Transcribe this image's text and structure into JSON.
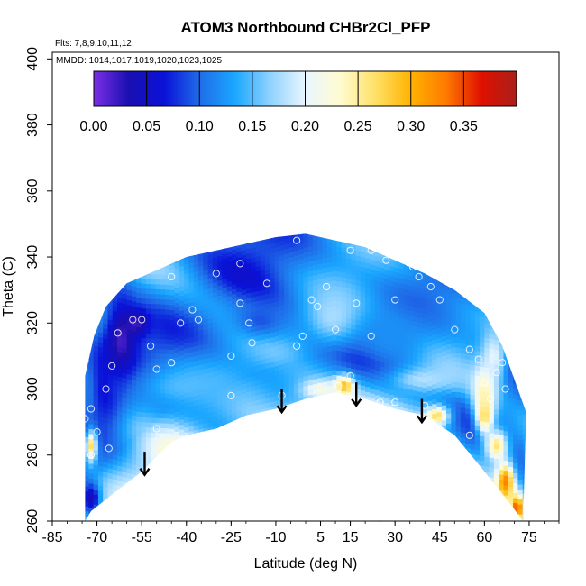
{
  "chart_data": {
    "type": "heatmap",
    "title": "ATOM3 Northbound CHBr2Cl_PFP",
    "annotations": {
      "flights": "Flts: 7,8,9,10,11,12",
      "dates": "MMDD: 1014,1017,1019,1020,1023,1025"
    },
    "xlabel": "Latitude (deg N)",
    "ylabel": "Theta (C)",
    "xlim": [
      -85,
      85
    ],
    "ylim": [
      260,
      402
    ],
    "x_ticks": [
      -85,
      -70,
      -55,
      -40,
      -25,
      -10,
      5,
      15,
      30,
      45,
      60,
      75
    ],
    "x_tick_labels": [
      "-85",
      "-70",
      "-55",
      "-40",
      "-25",
      "-10",
      "5",
      "15",
      "30",
      "45",
      "60",
      "75"
    ],
    "y_ticks": [
      260,
      280,
      300,
      320,
      340,
      360,
      380,
      400
    ],
    "y_tick_labels": [
      "260",
      "280",
      "300",
      "320",
      "340",
      "360",
      "380",
      "400"
    ],
    "colorbar": {
      "range": [
        0.0,
        0.4
      ],
      "ticks": [
        0.0,
        0.05,
        0.1,
        0.15,
        0.2,
        0.25,
        0.3,
        0.35
      ],
      "tick_labels": [
        "0.00",
        "0.05",
        "0.10",
        "0.15",
        "0.20",
        "0.25",
        "0.30",
        "0.35"
      ],
      "colors": [
        "#7b2fe6",
        "#1a0fb0",
        "#0a12d8",
        "#1f6ce8",
        "#1aa6ff",
        "#8fd2ff",
        "#e9f6ff",
        "#fffbd0",
        "#ffe066",
        "#ffb300",
        "#ff7a00",
        "#e01000",
        "#a8201a"
      ]
    },
    "coverage_top": [
      [
        -74,
        304
      ],
      [
        -71,
        316
      ],
      [
        -67,
        325
      ],
      [
        -60,
        332
      ],
      [
        -50,
        336
      ],
      [
        -40,
        340
      ],
      [
        -30,
        342
      ],
      [
        -20,
        344
      ],
      [
        -10,
        346
      ],
      [
        0,
        347
      ],
      [
        10,
        345
      ],
      [
        20,
        343
      ],
      [
        30,
        339
      ],
      [
        40,
        335
      ],
      [
        50,
        330
      ],
      [
        60,
        323
      ],
      [
        66,
        313
      ],
      [
        70,
        303
      ],
      [
        74,
        293
      ]
    ],
    "coverage_bottom": [
      [
        -74,
        260
      ],
      [
        -72,
        263
      ],
      [
        -65,
        268
      ],
      [
        -55,
        275
      ],
      [
        -45,
        284
      ],
      [
        -40,
        286
      ],
      [
        -30,
        288
      ],
      [
        -20,
        292
      ],
      [
        -10,
        294
      ],
      [
        0,
        297
      ],
      [
        10,
        299
      ],
      [
        20,
        297
      ],
      [
        30,
        294
      ],
      [
        40,
        292
      ],
      [
        50,
        286
      ],
      [
        60,
        275
      ],
      [
        68,
        266
      ],
      [
        73,
        260
      ]
    ],
    "features": [
      {
        "lat": -62,
        "theta": 313,
        "value": 0.01,
        "sx": 5,
        "sy": 13
      },
      {
        "lat": -57,
        "theta": 320,
        "value": 0.02,
        "sx": 4,
        "sy": 4
      },
      {
        "lat": -67,
        "theta": 300,
        "value": 0.05,
        "sx": 6,
        "sy": 12
      },
      {
        "lat": -72,
        "theta": 267,
        "value": 0.04,
        "sx": 3,
        "sy": 5
      },
      {
        "lat": -72,
        "theta": 283,
        "value": 0.27,
        "sx": 2,
        "sy": 5
      },
      {
        "lat": -73,
        "theta": 298,
        "value": 0.1,
        "sx": 2,
        "sy": 8
      },
      {
        "lat": -40,
        "theta": 301,
        "value": 0.15,
        "sx": 20,
        "sy": 8
      },
      {
        "lat": -15,
        "theta": 321,
        "value": 0.09,
        "sx": 10,
        "sy": 6
      },
      {
        "lat": 10,
        "theta": 322,
        "value": 0.18,
        "sx": 12,
        "sy": 10
      },
      {
        "lat": 13,
        "theta": 301,
        "value": 0.31,
        "sx": 3,
        "sy": 3
      },
      {
        "lat": 5,
        "theta": 300,
        "value": 0.22,
        "sx": 6,
        "sy": 3
      },
      {
        "lat": 28,
        "theta": 316,
        "value": 0.12,
        "sx": 12,
        "sy": 10
      },
      {
        "lat": 40,
        "theta": 303,
        "value": 0.18,
        "sx": 12,
        "sy": 4
      },
      {
        "lat": 44,
        "theta": 292,
        "value": 0.27,
        "sx": 4,
        "sy": 3
      },
      {
        "lat": 60,
        "theta": 300,
        "value": 0.24,
        "sx": 4,
        "sy": 8
      },
      {
        "lat": 63,
        "theta": 310,
        "value": 0.2,
        "sx": 4,
        "sy": 8
      },
      {
        "lat": 60,
        "theta": 292,
        "value": 0.27,
        "sx": 3,
        "sy": 6
      },
      {
        "lat": 64,
        "theta": 283,
        "value": 0.26,
        "sx": 4,
        "sy": 5
      },
      {
        "lat": 67,
        "theta": 272,
        "value": 0.33,
        "sx": 3,
        "sy": 6
      },
      {
        "lat": 71,
        "theta": 264,
        "value": 0.36,
        "sx": 2,
        "sy": 4
      }
    ],
    "points": [
      [
        -74,
        291
      ],
      [
        -72,
        294
      ],
      [
        -72,
        280
      ],
      [
        -66,
        282
      ],
      [
        -67,
        300
      ],
      [
        -63,
        317
      ],
      [
        -58,
        321
      ],
      [
        -55,
        321
      ],
      [
        -52,
        313
      ],
      [
        -50,
        306
      ],
      [
        -45,
        308
      ],
      [
        -42,
        320
      ],
      [
        -38,
        324
      ],
      [
        -36,
        321
      ],
      [
        -33,
        286
      ],
      [
        -25,
        298
      ],
      [
        -22,
        326
      ],
      [
        -19,
        320
      ],
      [
        -18,
        314
      ],
      [
        -13,
        332
      ],
      [
        -8,
        298
      ],
      [
        -3,
        313
      ],
      [
        -1,
        316
      ],
      [
        2,
        327
      ],
      [
        4,
        325
      ],
      [
        7,
        331
      ],
      [
        10,
        318
      ],
      [
        11,
        301
      ],
      [
        -3,
        345
      ],
      [
        -22,
        338
      ],
      [
        -30,
        335
      ],
      [
        -45,
        334
      ],
      [
        -25,
        310
      ],
      [
        -50,
        288
      ],
      [
        -65,
        307
      ],
      [
        -70,
        287
      ],
      [
        15,
        342
      ],
      [
        22,
        342
      ],
      [
        27,
        339
      ],
      [
        17,
        326
      ],
      [
        22,
        316
      ],
      [
        30,
        327
      ],
      [
        36,
        337
      ],
      [
        38,
        334
      ],
      [
        42,
        331
      ],
      [
        45,
        327
      ],
      [
        50,
        318
      ],
      [
        55,
        312
      ],
      [
        58,
        309
      ],
      [
        60,
        302
      ],
      [
        62,
        297
      ],
      [
        64,
        305
      ],
      [
        66,
        308
      ],
      [
        67,
        300
      ],
      [
        55,
        286
      ],
      [
        40,
        295
      ],
      [
        30,
        296
      ],
      [
        25,
        296
      ],
      [
        15,
        304
      ]
    ],
    "arrows": [
      {
        "lat": -54,
        "theta": 281
      },
      {
        "lat": -8,
        "theta": 300
      },
      {
        "lat": 17,
        "theta": 302
      },
      {
        "lat": 39,
        "theta": 297
      }
    ]
  }
}
